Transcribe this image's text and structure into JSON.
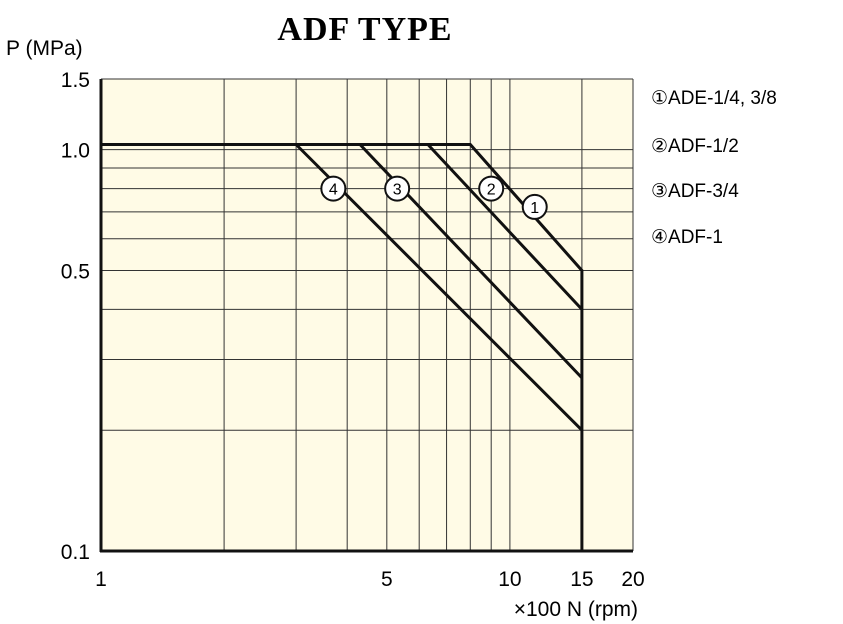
{
  "chart_data": {
    "type": "line",
    "title": "ADF TYPE",
    "xlabel": "×100 N (rpm)",
    "ylabel": "P (MPa)",
    "xscale": "log",
    "yscale": "log",
    "xlim": [
      1,
      20
    ],
    "ylim": [
      0.1,
      1.5
    ],
    "background_color": "#fffbe6",
    "line_color": "#111111",
    "grid": true,
    "x_ticks": [
      {
        "value": 1,
        "label": "1"
      },
      {
        "value": 5,
        "label": "5"
      },
      {
        "value": 10,
        "label": "10"
      },
      {
        "value": 15,
        "label": "15"
      },
      {
        "value": 20,
        "label": "20"
      }
    ],
    "y_ticks": [
      {
        "value": 0.1,
        "label": "0.1"
      },
      {
        "value": 0.5,
        "label": "0.5"
      },
      {
        "value": 1.0,
        "label": "1.0"
      },
      {
        "value": 1.5,
        "label": "1.5"
      }
    ],
    "x_grid": [
      2,
      3,
      4,
      5,
      6,
      7,
      8,
      9,
      10,
      15
    ],
    "y_grid": [
      0.2,
      0.3,
      0.4,
      0.5,
      0.6,
      0.7,
      0.8,
      0.9,
      1.0
    ],
    "legend_position": "right",
    "series": [
      {
        "name": "①ADE-1/4, 3/8",
        "marker": "1",
        "x": [
          1,
          8,
          15,
          15
        ],
        "y": [
          1.03,
          1.03,
          0.5,
          0.1
        ],
        "marker_at": [
          11.5,
          0.72
        ]
      },
      {
        "name": "②ADF-1/2",
        "marker": "2",
        "x": [
          6.3,
          15
        ],
        "y": [
          1.03,
          0.4
        ],
        "marker_at": [
          9.0,
          0.8
        ]
      },
      {
        "name": "③ADF-3/4",
        "marker": "3",
        "x": [
          4.3,
          15
        ],
        "y": [
          1.03,
          0.27
        ],
        "marker_at": [
          5.3,
          0.8
        ]
      },
      {
        "name": "④ADF-1",
        "marker": "4",
        "x": [
          3.0,
          15
        ],
        "y": [
          1.03,
          0.2
        ],
        "marker_at": [
          3.7,
          0.8
        ]
      }
    ]
  }
}
